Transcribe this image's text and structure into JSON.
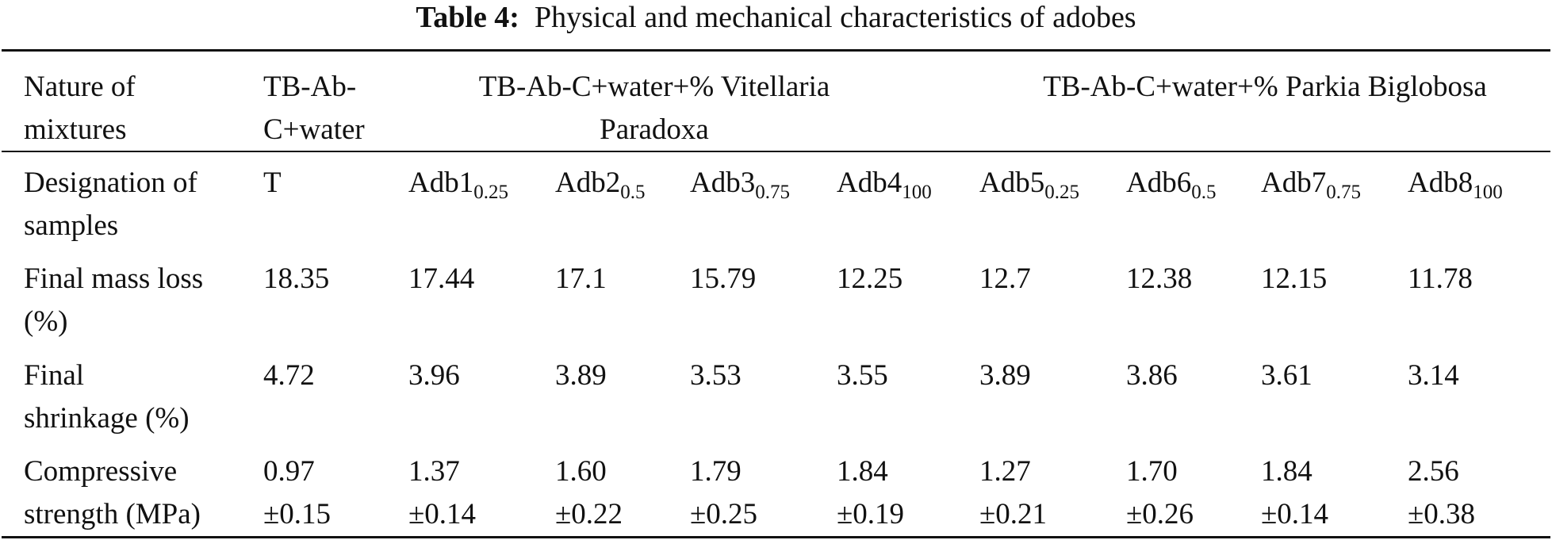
{
  "caption": {
    "label": "Table 4:",
    "text": "Physical and mechanical characteristics of adobes"
  },
  "header": {
    "nature_line1": "Nature of",
    "nature_line2": "mixtures",
    "control_line1": "TB-Ab-",
    "control_line2": "C+water",
    "group_vitellaria_line1": "TB-Ab-C+water+% Vitellaria",
    "group_vitellaria_line2": "Paradoxa",
    "group_parkia": "TB-Ab-C+water+% Parkia Biglobosa"
  },
  "designation": {
    "label_line1": "Designation of",
    "label_line2": "samples",
    "samples": [
      {
        "base": "T",
        "sub": ""
      },
      {
        "base": "Adb1",
        "sub": "0.25"
      },
      {
        "base": "Adb2",
        "sub": "0.5"
      },
      {
        "base": "Adb3",
        "sub": "0.75"
      },
      {
        "base": "Adb4",
        "sub": "100"
      },
      {
        "base": "Adb5",
        "sub": "0.25"
      },
      {
        "base": "Adb6",
        "sub": "0.5"
      },
      {
        "base": "Adb7",
        "sub": "0.75"
      },
      {
        "base": "Adb8",
        "sub": "100"
      }
    ]
  },
  "mass_loss": {
    "label_line1": "Final mass loss",
    "label_line2": "(%)",
    "values": [
      "18.35",
      "17.44",
      "17.1",
      "15.79",
      "12.25",
      "12.7",
      "12.38",
      "12.15",
      "11.78"
    ]
  },
  "shrinkage": {
    "label_line1": "Final",
    "label_line2": "shrinkage (%)",
    "values": [
      "4.72",
      "3.96",
      "3.89",
      "3.53",
      "3.55",
      "3.89",
      "3.86",
      "3.61",
      "3.14"
    ]
  },
  "compressive": {
    "label_line1": "Compressive",
    "label_line2": "strength (MPa)",
    "means": [
      "0.97",
      "1.37",
      "1.60",
      "1.79",
      "1.84",
      "1.27",
      "1.70",
      "1.84",
      "2.56"
    ],
    "sds": [
      "±0.15",
      "±0.14",
      "±0.22",
      "±0.25",
      "±0.19",
      "±0.21",
      "±0.26",
      "±0.14",
      "±0.38"
    ]
  }
}
